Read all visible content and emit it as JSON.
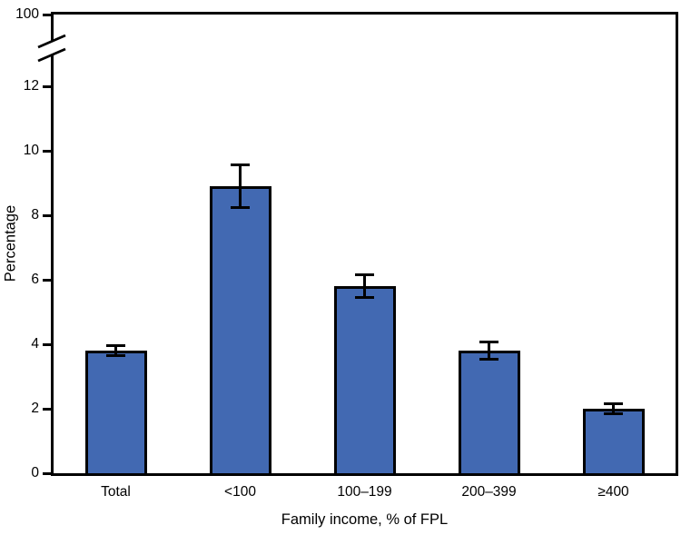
{
  "chart_data": {
    "type": "bar",
    "title": "",
    "xlabel": "Family income, % of FPL",
    "ylabel": "Percentage",
    "categories": [
      "Total",
      "<100",
      "100–199",
      "200–399",
      "≥400"
    ],
    "values": [
      3.8,
      8.9,
      5.8,
      3.8,
      2.0
    ],
    "error_bars": {
      "low": [
        3.6,
        8.2,
        5.4,
        3.5,
        1.8
      ],
      "high": [
        4.0,
        9.6,
        6.2,
        4.1,
        2.2
      ]
    },
    "y_ticks": [
      0,
      2,
      4,
      6,
      8,
      10,
      12
    ],
    "y_axis_break": {
      "present": true,
      "upper_tick_label": "100"
    },
    "ylim": [
      0,
      100
    ],
    "grid": false,
    "legend_position": "none",
    "bar_color": "#4269B2",
    "bar_border_color": "#000000",
    "error_bar_color": "#000000",
    "axis_color": "#000000",
    "background_color": "#FFFFFF"
  }
}
